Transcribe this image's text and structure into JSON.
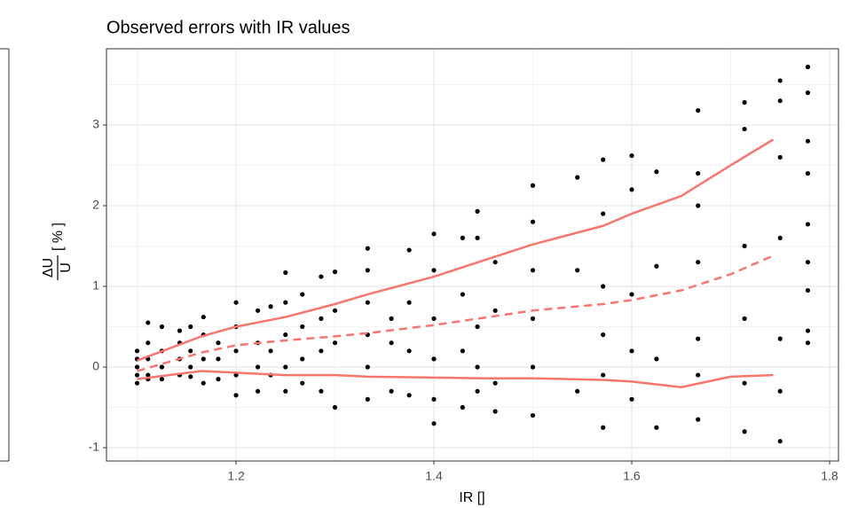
{
  "chart_data": {
    "type": "scatter",
    "title": "Observed errors with IR values",
    "x_label": "IR []",
    "y_label": {
      "numerator": "ΔU",
      "denominator": "U",
      "unit": "[ % ]"
    },
    "xlim": [
      1.069,
      1.809
    ],
    "ylim": [
      -1.165,
      3.945
    ],
    "xticks": [
      1.2,
      1.4,
      1.6,
      1.8
    ],
    "yticks": [
      -1,
      0,
      1,
      2,
      3
    ],
    "x_minor_grid": [
      1.1,
      1.3,
      1.5,
      1.7
    ],
    "y_minor_grid": [
      -0.5,
      0.5,
      1.5,
      2.5,
      3.5
    ],
    "grid": true,
    "series": [
      {
        "color": "#000000",
        "x": [
          1.1,
          1.1,
          1.1,
          1.1,
          1.1,
          1.111,
          1.111,
          1.111,
          1.111,
          1.111,
          1.125,
          1.125,
          1.125,
          1.125,
          1.143,
          1.143,
          1.143,
          1.143,
          1.154,
          1.154,
          1.154,
          1.154,
          1.167,
          1.167,
          1.167,
          1.167,
          1.182,
          1.182,
          1.182,
          1.2,
          1.2,
          1.2,
          1.2,
          1.2,
          1.222,
          1.222,
          1.222,
          1.222,
          1.235,
          1.235,
          1.235,
          1.25,
          1.25,
          1.25,
          1.25,
          1.25,
          1.267,
          1.267,
          1.267,
          1.267,
          1.286,
          1.286,
          1.286,
          1.286,
          1.3,
          1.3,
          1.3,
          1.3,
          1.333,
          1.333,
          1.333,
          1.333,
          1.333,
          1.333,
          1.357,
          1.357,
          1.357,
          1.375,
          1.375,
          1.375,
          1.375,
          1.4,
          1.4,
          1.4,
          1.4,
          1.4,
          1.4,
          1.429,
          1.429,
          1.429,
          1.429,
          1.444,
          1.444,
          1.444,
          1.444,
          1.444,
          1.462,
          1.462,
          1.462,
          1.462,
          1.5,
          1.5,
          1.5,
          1.5,
          1.5,
          1.5,
          1.545,
          1.545,
          1.545,
          1.571,
          1.571,
          1.571,
          1.571,
          1.571,
          1.571,
          1.6,
          1.6,
          1.6,
          1.6,
          1.6,
          1.625,
          1.625,
          1.625,
          1.625,
          1.667,
          1.667,
          1.667,
          1.667,
          1.667,
          1.667,
          1.667,
          1.714,
          1.714,
          1.714,
          1.714,
          1.714,
          1.714,
          1.75,
          1.75,
          1.75,
          1.75,
          1.75,
          1.75,
          1.75,
          1.778,
          1.778,
          1.778,
          1.778,
          1.778,
          1.778,
          1.778,
          1.778,
          1.778
        ],
        "values": [
          0.2,
          0.1,
          0,
          -0.1,
          -0.2,
          0.55,
          0.3,
          0.1,
          -0.1,
          -0.15,
          0.5,
          0.2,
          0,
          -0.15,
          0.45,
          0.3,
          0.1,
          -0.1,
          0.5,
          0.2,
          0,
          -0.12,
          0.62,
          0.4,
          0.1,
          -0.2,
          0.3,
          0.1,
          -0.15,
          0.8,
          0.5,
          0.2,
          -0.1,
          -0.35,
          0.7,
          0.3,
          0,
          -0.3,
          0.75,
          0.2,
          -0.1,
          1.17,
          0.8,
          0.4,
          0,
          -0.3,
          0.9,
          0.5,
          0.1,
          -0.2,
          1.12,
          0.6,
          0.2,
          -0.3,
          1.18,
          0.7,
          0.3,
          -0.5,
          1.47,
          1.2,
          0.8,
          0.4,
          0,
          -0.4,
          0.6,
          0.3,
          -0.3,
          1.45,
          0.8,
          0.2,
          -0.35,
          1.65,
          1.2,
          0.6,
          0.1,
          -0.4,
          -0.7,
          1.6,
          0.9,
          0.2,
          -0.5,
          1.93,
          1.6,
          0.5,
          0,
          -0.3,
          1.3,
          0.7,
          -0.2,
          -0.55,
          2.25,
          1.8,
          1.2,
          0.6,
          0,
          -0.6,
          2.35,
          1.2,
          -0.3,
          2.57,
          1.9,
          1.0,
          0.4,
          -0.1,
          -0.75,
          2.62,
          2.2,
          0.9,
          0.2,
          -0.4,
          2.42,
          1.25,
          0.1,
          -0.75,
          3.18,
          2.4,
          2.0,
          1.3,
          0.35,
          -0.1,
          -0.65,
          3.28,
          2.95,
          1.5,
          0.6,
          -0.2,
          -0.8,
          3.55,
          3.3,
          2.6,
          1.6,
          0.35,
          -0.3,
          -0.92,
          3.72,
          3.4,
          2.8,
          2.4,
          1.77,
          1.3,
          0.95,
          0.45,
          0.3
        ]
      },
      {
        "type": "line",
        "color": "#f8766d",
        "dash": false,
        "x": [
          1.1,
          1.165,
          1.2,
          1.25,
          1.3,
          1.333,
          1.4,
          1.45,
          1.5,
          1.571,
          1.6,
          1.65,
          1.7,
          1.743
        ],
        "values": [
          0.08,
          0.38,
          0.5,
          0.62,
          0.78,
          0.9,
          1.12,
          1.32,
          1.52,
          1.75,
          1.9,
          2.12,
          2.5,
          2.82
        ]
      },
      {
        "type": "line",
        "color": "#f8766d",
        "dash": true,
        "x": [
          1.1,
          1.165,
          1.2,
          1.25,
          1.3,
          1.333,
          1.4,
          1.45,
          1.5,
          1.571,
          1.6,
          1.65,
          1.7,
          1.743
        ],
        "values": [
          -0.05,
          0.18,
          0.27,
          0.33,
          0.38,
          0.42,
          0.52,
          0.61,
          0.7,
          0.78,
          0.83,
          0.95,
          1.15,
          1.38
        ]
      },
      {
        "type": "line",
        "color": "#f8766d",
        "dash": false,
        "x": [
          1.1,
          1.165,
          1.2,
          1.25,
          1.3,
          1.333,
          1.4,
          1.45,
          1.5,
          1.571,
          1.6,
          1.65,
          1.7,
          1.743
        ],
        "values": [
          -0.15,
          -0.05,
          -0.07,
          -0.1,
          -0.1,
          -0.12,
          -0.13,
          -0.14,
          -0.14,
          -0.16,
          -0.18,
          -0.25,
          -0.12,
          -0.1
        ]
      }
    ]
  }
}
